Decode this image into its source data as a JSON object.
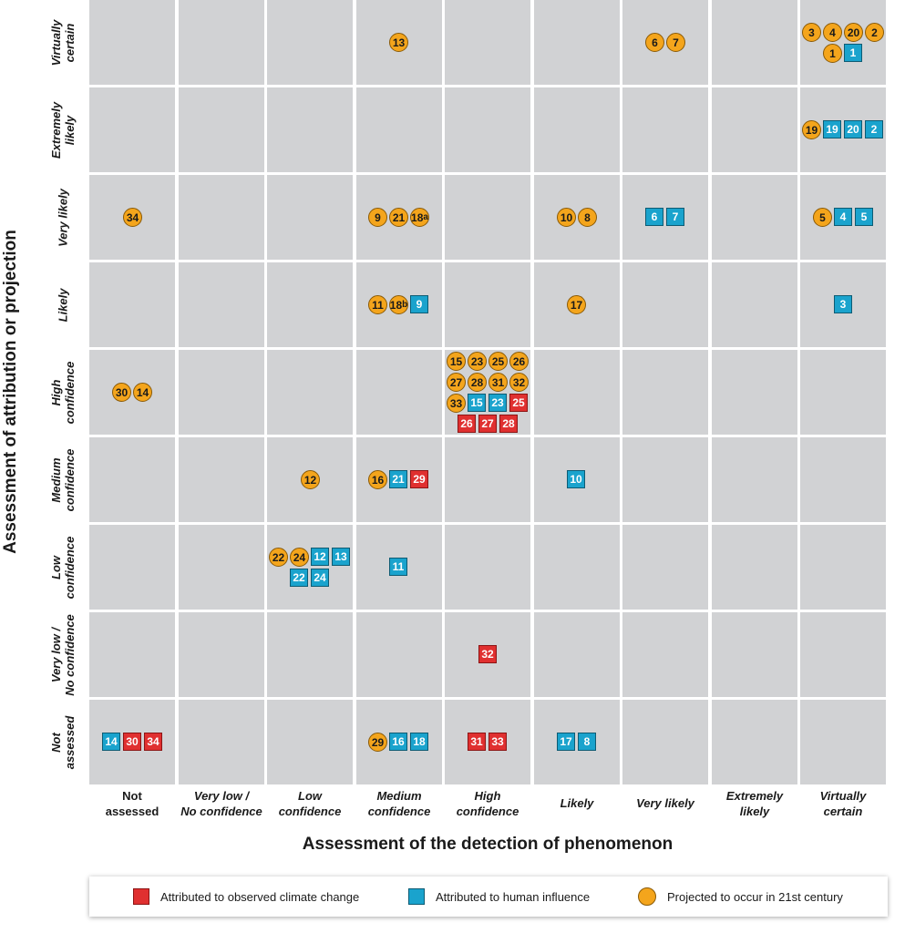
{
  "chart_data": {
    "type": "scatter",
    "title": "",
    "xlabel": "Assessment of the detection of phenomenon",
    "ylabel": "Assessment of attribution or projection",
    "x_categories": [
      "Not\nassessed",
      "Very low /\nNo confidence",
      "Low\nconfidence",
      "Medium\nconfidence",
      "High\nconfidence",
      "Likely",
      "Very likely",
      "Extremely\nlikely",
      "Virtually\ncertain"
    ],
    "y_categories": [
      "Virtually\ncertain",
      "Extremely\nlikely",
      "Very likely",
      "Likely",
      "High\nconfidence",
      "Medium\nconfidence",
      "Low\nconfidence",
      "Very low /\nNo confidence",
      "Not\nassessed"
    ],
    "grid": true,
    "legend": {
      "placement": "bottom",
      "entries": [
        {
          "key": "observed",
          "label": "Attributed to observed climate change",
          "shape": "square",
          "color": "#e03030"
        },
        {
          "key": "human",
          "label": "Attributed to human influence",
          "shape": "square",
          "color": "#1aa3cd"
        },
        {
          "key": "projected",
          "label": "Projected to occur in 21st century",
          "shape": "circle",
          "color": "#f4a51c"
        }
      ]
    },
    "cells": [
      {
        "x": "Virtually\ncertain",
        "y": "Virtually\ncertain",
        "projected": [
          "3",
          "4",
          "20",
          "2",
          "1"
        ],
        "human": [
          "1"
        ]
      },
      {
        "x": "Very likely",
        "y": "Virtually\ncertain",
        "projected": [
          "6",
          "7"
        ]
      },
      {
        "x": "Medium\nconfidence",
        "y": "Virtually\ncertain",
        "projected": [
          "13"
        ]
      },
      {
        "x": "Virtually\ncertain",
        "y": "Extremely\nlikely",
        "projected": [
          "19"
        ],
        "human": [
          "19",
          "20",
          "2"
        ]
      },
      {
        "x": "Not\nassessed",
        "y": "Very likely",
        "projected": [
          "34"
        ]
      },
      {
        "x": "Medium\nconfidence",
        "y": "Very likely",
        "projected": [
          "9",
          "21",
          "18a"
        ]
      },
      {
        "x": "Likely",
        "y": "Very likely",
        "projected": [
          "10",
          "8"
        ]
      },
      {
        "x": "Very likely",
        "y": "Very likely",
        "human": [
          "6",
          "7"
        ]
      },
      {
        "x": "Virtually\ncertain",
        "y": "Very likely",
        "projected": [
          "5"
        ],
        "human": [
          "4",
          "5"
        ]
      },
      {
        "x": "Medium\nconfidence",
        "y": "Likely",
        "projected": [
          "11",
          "18b"
        ],
        "human": [
          "9"
        ]
      },
      {
        "x": "Likely",
        "y": "Likely",
        "projected": [
          "17"
        ]
      },
      {
        "x": "Virtually\ncertain",
        "y": "Likely",
        "human": [
          "3"
        ]
      },
      {
        "x": "Not\nassessed",
        "y": "High\nconfidence",
        "projected": [
          "30",
          "14"
        ]
      },
      {
        "x": "High\nconfidence",
        "y": "High\nconfidence",
        "projected": [
          "15",
          "23",
          "25",
          "26",
          "27",
          "28",
          "31",
          "32",
          "33"
        ],
        "human": [
          "15",
          "23"
        ],
        "observed": [
          "25",
          "26",
          "27",
          "28"
        ]
      },
      {
        "x": "Low\nconfidence",
        "y": "Medium\nconfidence",
        "projected": [
          "12"
        ]
      },
      {
        "x": "Medium\nconfidence",
        "y": "Medium\nconfidence",
        "projected": [
          "16"
        ],
        "human": [
          "21"
        ],
        "observed": [
          "29"
        ]
      },
      {
        "x": "Likely",
        "y": "Medium\nconfidence",
        "human": [
          "10"
        ]
      },
      {
        "x": "Low\nconfidence",
        "y": "Low\nconfidence",
        "projected": [
          "22",
          "24"
        ],
        "human": [
          "12",
          "13",
          "22",
          "24"
        ]
      },
      {
        "x": "Medium\nconfidence",
        "y": "Low\nconfidence",
        "human": [
          "11"
        ]
      },
      {
        "x": "High\nconfidence",
        "y": "Very low /\nNo confidence",
        "observed": [
          "32"
        ]
      },
      {
        "x": "Not\nassessed",
        "y": "Not\nassessed",
        "human": [
          "14"
        ],
        "observed": [
          "30",
          "34"
        ]
      },
      {
        "x": "Medium\nconfidence",
        "y": "Not\nassessed",
        "projected": [
          "29"
        ],
        "human": [
          "16",
          "18"
        ]
      },
      {
        "x": "High\nconfidence",
        "y": "Not\nassessed",
        "observed": [
          "31",
          "33"
        ]
      },
      {
        "x": "Likely",
        "y": "Not\nassessed",
        "human": [
          "17",
          "8"
        ]
      }
    ]
  }
}
